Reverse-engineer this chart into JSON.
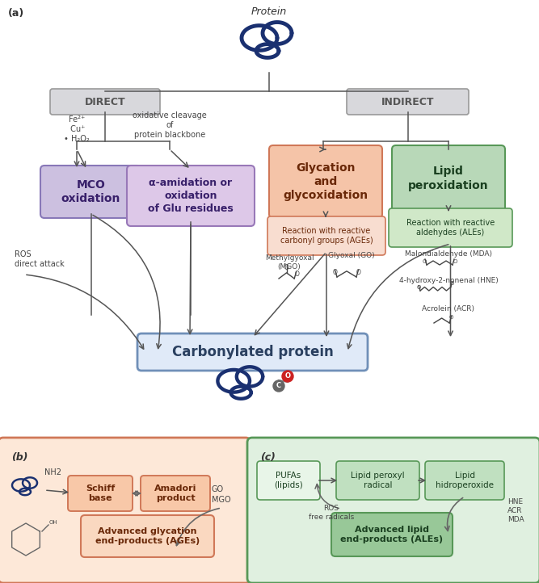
{
  "bg": "white",
  "panel_a_label": "(a)",
  "panel_b_label": "(b)",
  "panel_c_label": "(c)",
  "protein_top_label": "Protein",
  "direct_label": "DIRECT",
  "indirect_label": "INDIRECT",
  "fe_cu_label": "Fe²⁺\n Cu⁺\n• H₂O₂",
  "ox_cleave_label": "oxidative cleavage\nof\nprotein blackbone",
  "mco_label": "MCO\noxidation",
  "alpha_label": "α-amidation or\noxidation\nof Glu residues",
  "ros_label": "ROS\ndirect attack",
  "glycation_label": "Glycation\nand\nglycoxidation",
  "lipid_perox_label": "Lipid\nperoxidation",
  "react_carbonyl_label": "Reaction with reactive\ncarbonyl groups (AGEs)",
  "react_aldehyde_label": "Reaction with reactive\naldehydes (ALEs)",
  "mgo_label": "Methylgyoxal\n(MGO)",
  "go_label": "Glyoxal (GO)",
  "mda_label": "Malondialdehyde (MDA)",
  "hne_label": "4-hydroxy-2-nonenal (HNE)",
  "acr_label": "Acrolein (ACR)",
  "carbonylated_label": "Carbonylated protein",
  "schiff_label": "Schiff\nbase",
  "amadori_label": "Amadori\nproduct",
  "go_label2": "GO",
  "mgo_label2": "MGO",
  "ages_label": "Advanced glycation\nend-products (AGEs)",
  "pufas_label": "PUFAs\n(lipids)",
  "ros_free_label": "ROS\nfree radicals",
  "lipid_peroxyl_label": "Lipid peroxyl\nradical",
  "lipid_hydro_label": "Lipid\nhidroperoxide",
  "hne_acr_mda_label": "HNE\nACR\nMDA",
  "ales_label": "Advanced lipid\nend-products (ALEs)",
  "color_direct_box": "#d8d8dc",
  "color_direct_edge": "#999999",
  "color_mco_fill": "#ccc0e0",
  "color_mco_edge": "#8878b8",
  "color_alpha_fill": "#ddc8e8",
  "color_alpha_edge": "#9878b8",
  "color_glycation_fill": "#f5c4a8",
  "color_glycation_edge": "#d07858",
  "color_lipid_fill": "#b8d8b8",
  "color_lipid_edge": "#589858",
  "color_react_carbonyl_fill": "#f8ddd0",
  "color_react_carbonyl_edge": "#d07858",
  "color_react_aldehyde_fill": "#d0e8c8",
  "color_react_aldehyde_edge": "#589858",
  "color_carbonylated_fill": "#e0eaf8",
  "color_carbonylated_edge": "#7090b8",
  "color_panel_b_fill": "#fde8d8",
  "color_panel_b_edge": "#d07858",
  "color_panel_c_fill": "#e0f0e0",
  "color_panel_c_edge": "#589858",
  "color_schiff_fill": "#f8c8a8",
  "color_schiff_edge": "#d07858",
  "color_amadori_fill": "#f8c8a8",
  "color_amadori_edge": "#d07858",
  "color_ages_fill": "#fad8c0",
  "color_ages_edge": "#d07858",
  "color_pufas_fill": "#e8f5e8",
  "color_pufas_edge": "#589858",
  "color_peroxyl_fill": "#c0e0c0",
  "color_peroxyl_edge": "#589858",
  "color_hydro_fill": "#c0e0c0",
  "color_hydro_edge": "#589858",
  "color_ales_fill": "#98c898",
  "color_ales_edge": "#589858",
  "color_arrow": "#555555",
  "color_text": "#333333",
  "color_protein": "#1a3070"
}
